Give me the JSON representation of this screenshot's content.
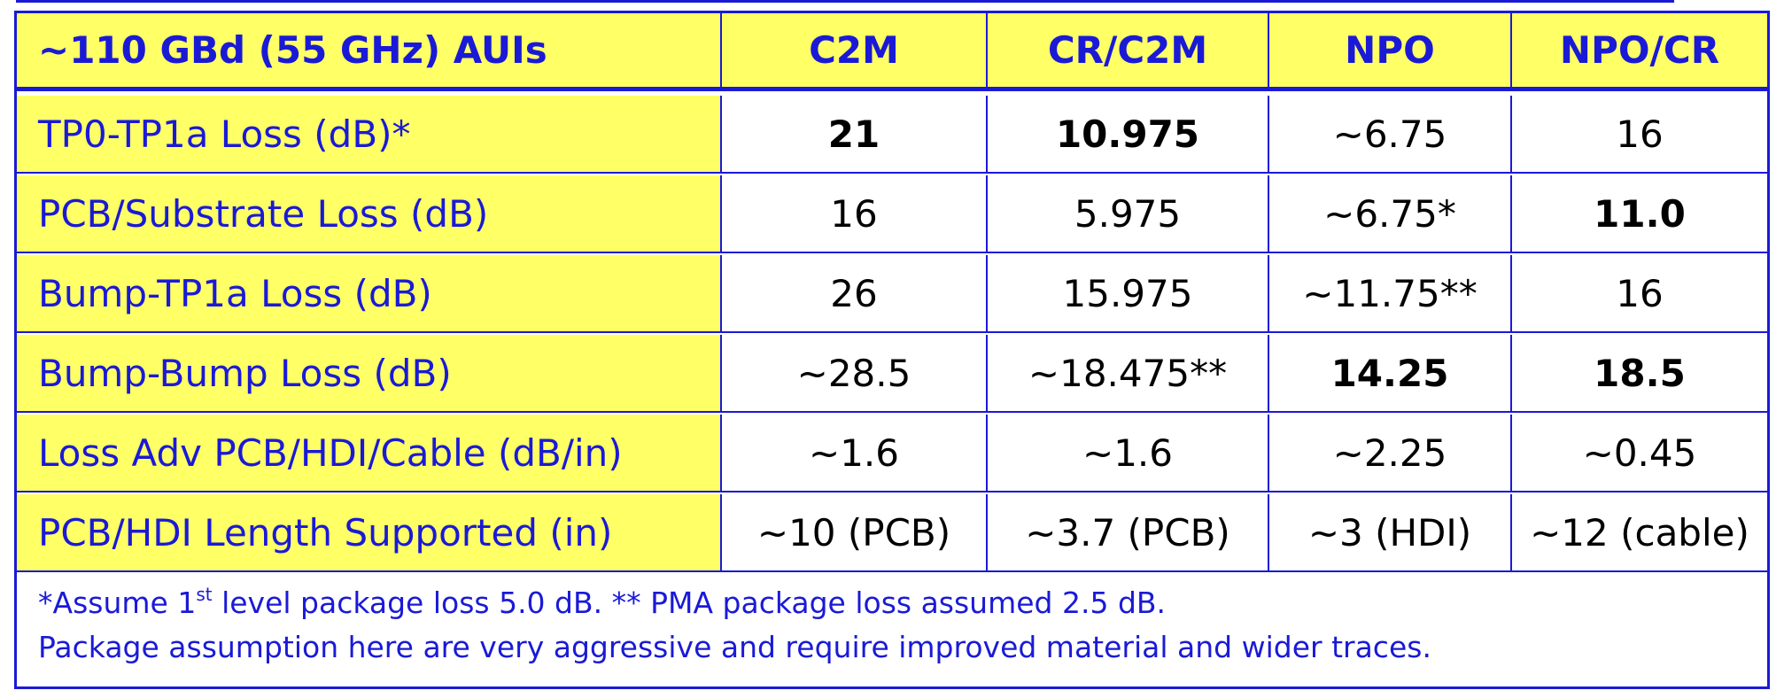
{
  "header": [
    "~110 GBd (55 GHz) AUIs",
    "C2M",
    "CR/C2M",
    "NPO",
    "NPO/CR"
  ],
  "rows": [
    {
      "label": "TP0-TP1a Loss (dB)*",
      "cells": [
        "21",
        "10.975",
        "~6.75",
        "16"
      ],
      "bold": [
        true,
        true,
        false,
        false
      ]
    },
    {
      "label": "PCB/Substrate Loss (dB)",
      "cells": [
        "16",
        "5.975",
        "~6.75*",
        "11.0"
      ],
      "bold": [
        false,
        false,
        false,
        true
      ]
    },
    {
      "label": "Bump-TP1a Loss (dB)",
      "cells": [
        "26",
        "15.975",
        "~11.75**",
        "16"
      ],
      "bold": [
        false,
        false,
        false,
        false
      ]
    },
    {
      "label": "Bump-Bump Loss (dB)",
      "cells": [
        "~28.5",
        "~18.475**",
        "14.25",
        "18.5"
      ],
      "bold": [
        false,
        false,
        true,
        true
      ]
    },
    {
      "label": "Loss Adv PCB/HDI/Cable (dB/in)",
      "cells": [
        "~1.6",
        "~1.6",
        "~2.25",
        "~0.45"
      ],
      "bold": [
        false,
        false,
        false,
        false
      ]
    },
    {
      "label": "PCB/HDI Length Supported (in)",
      "cells": [
        "~10 (PCB)",
        "~3.7 (PCB)",
        "~3 (HDI)",
        "~12 (cable)"
      ],
      "bold": [
        false,
        false,
        false,
        false
      ]
    }
  ],
  "footnote": {
    "line1_pre": "*Assume 1",
    "line1_sup": "st",
    "line1_post": " level package loss 5.0 dB.  ** PMA package loss assumed 2.5 dB.",
    "line2": "Package assumption here are very aggressive and require improved material and wider traces."
  }
}
